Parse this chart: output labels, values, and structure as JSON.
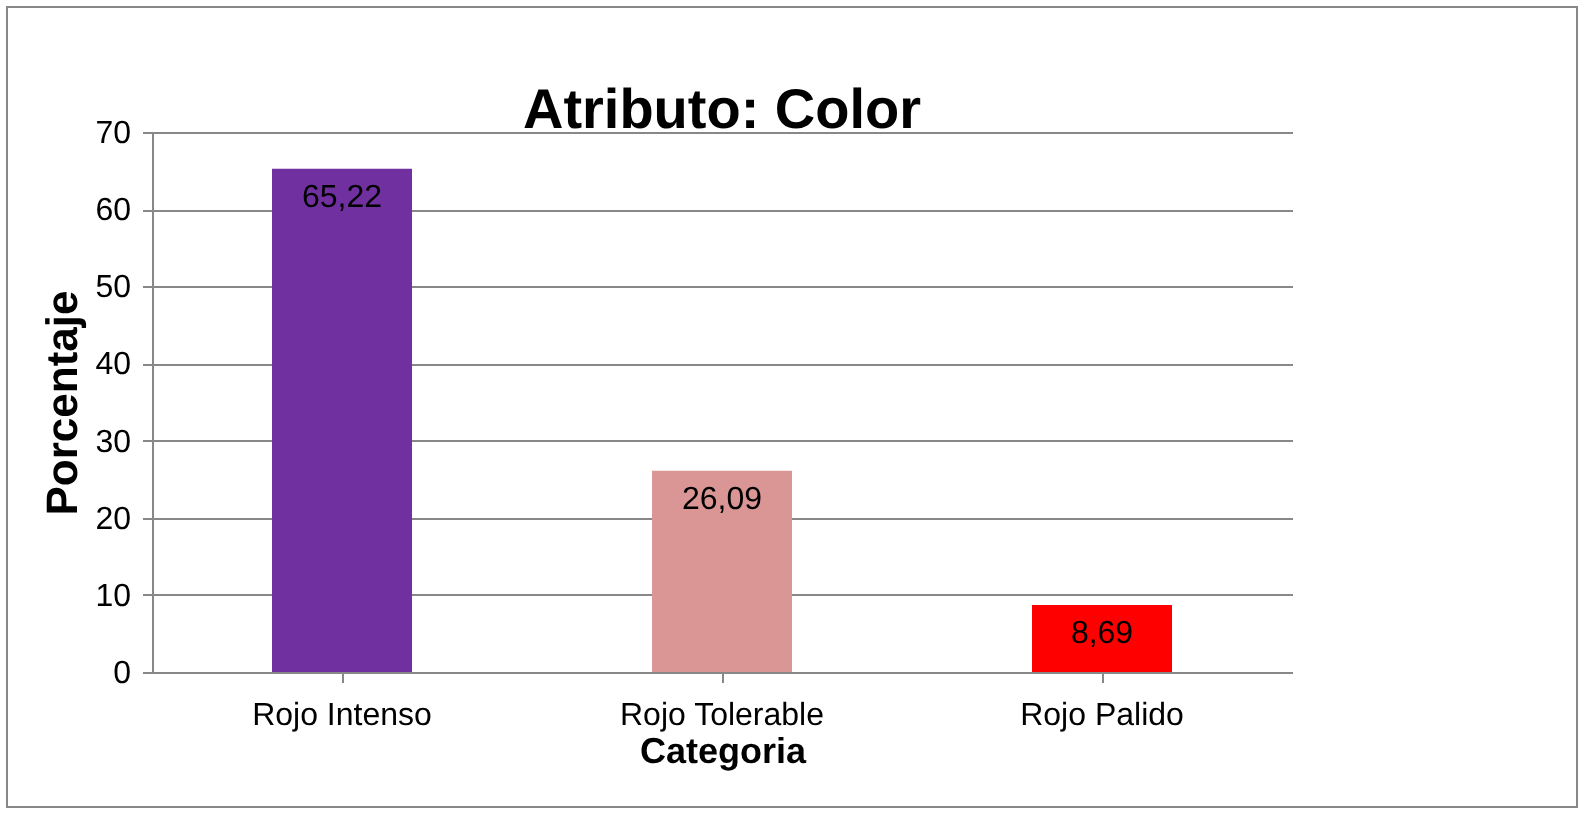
{
  "chart_data": {
    "type": "bar",
    "title": "Atributo: Color",
    "xlabel": "Categoria",
    "ylabel": "Porcentaje",
    "categories": [
      "Rojo Intenso",
      "Rojo Tolerable",
      "Rojo Palido"
    ],
    "values": [
      65.22,
      26.09,
      8.69
    ],
    "colors": [
      "#7030a0",
      "#d99694",
      "#ff0000"
    ],
    "value_labels": [
      "65,22",
      "26,09",
      "8,69"
    ],
    "ylim": [
      0,
      70
    ],
    "yticks": [
      0,
      10,
      20,
      30,
      40,
      50,
      60,
      70
    ],
    "grid": "y"
  }
}
